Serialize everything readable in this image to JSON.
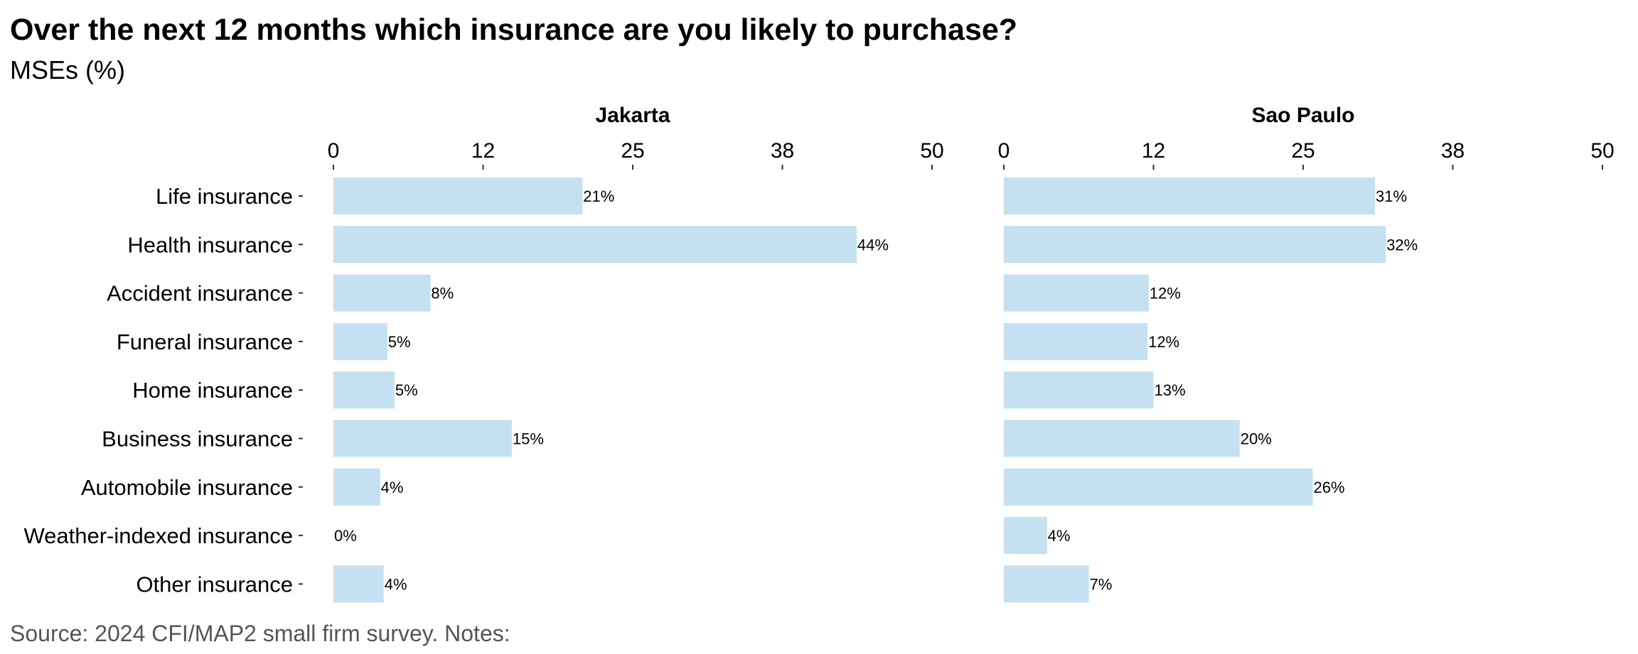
{
  "chart_data": {
    "type": "bar",
    "orientation": "horizontal",
    "title": "Over the next 12 months which insurance are you likely to purchase?",
    "subtitle": "MSEs (%)",
    "caption": "Source: 2024 CFI/MAP2 small firm survey. Notes:",
    "categories": [
      "Life insurance",
      "Health insurance",
      "Accident insurance",
      "Funeral insurance",
      "Home insurance",
      "Business insurance",
      "Automobile insurance",
      "Weather-indexed insurance",
      "Other insurance"
    ],
    "xlim": [
      0,
      50
    ],
    "ticks": [
      0,
      12.5,
      25,
      37.5,
      50
    ],
    "tick_labels": [
      "0",
      "12",
      "25",
      "38",
      "50"
    ],
    "grid": false,
    "bar_color": "#c5e0f1",
    "panels": [
      {
        "title": "Jakarta",
        "values": [
          20.8,
          43.7,
          8.1,
          4.5,
          5.1,
          14.9,
          3.9,
          0,
          4.2
        ],
        "labels": [
          "21%",
          "44%",
          "8%",
          "5%",
          "5%",
          "15%",
          "4%",
          "0%",
          "4%"
        ]
      },
      {
        "title": "Sao Paulo",
        "values": [
          31.0,
          31.9,
          12.1,
          12.0,
          12.5,
          19.7,
          25.8,
          3.6,
          7.1
        ],
        "labels": [
          "31%",
          "32%",
          "12%",
          "12%",
          "13%",
          "20%",
          "26%",
          "4%",
          "7%"
        ]
      }
    ]
  }
}
